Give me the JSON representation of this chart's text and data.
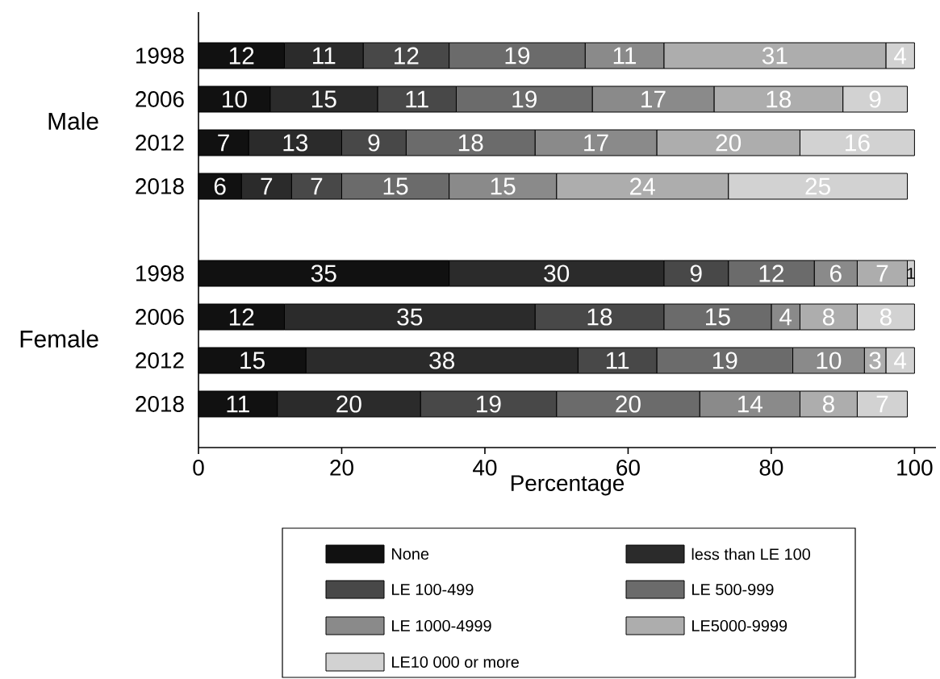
{
  "chart_data": {
    "type": "bar",
    "orientation": "horizontal",
    "stacked": true,
    "data_labels": true,
    "legend": "bottom",
    "xlabel": "Percentage",
    "categories": [
      "1998",
      "2006",
      "2012",
      "2018",
      null,
      "1998",
      "2006",
      "2012",
      "2018"
    ],
    "annotations": [
      "Male",
      "Female"
    ],
    "xlim": [
      0,
      103
    ],
    "xticks": [
      0,
      20,
      40,
      60,
      80,
      100
    ],
    "series": [
      {
        "name": "None",
        "color": "#111111",
        "values": [
          12,
          10,
          7,
          6,
          null,
          35,
          12,
          15,
          11
        ]
      },
      {
        "name": "less than LE 100",
        "color": "#2b2b2b",
        "values": [
          11,
          15,
          13,
          7,
          null,
          30,
          35,
          38,
          20
        ]
      },
      {
        "name": "LE 100-499",
        "color": "#484848",
        "values": [
          12,
          11,
          9,
          7,
          null,
          9,
          18,
          11,
          19
        ]
      },
      {
        "name": "LE 500-999",
        "color": "#6b6b6b",
        "values": [
          19,
          19,
          18,
          15,
          null,
          12,
          15,
          19,
          20
        ]
      },
      {
        "name": "LE 1000-4999",
        "color": "#8a8a8a",
        "values": [
          11,
          17,
          17,
          15,
          null,
          6,
          4,
          10,
          14
        ]
      },
      {
        "name": "LE5000-9999",
        "color": "#adadad",
        "values": [
          31,
          18,
          20,
          24,
          null,
          7,
          8,
          3,
          8
        ]
      },
      {
        "name": "LE10 000 or more",
        "color": "#d2d2d2",
        "values": [
          4,
          9,
          16,
          25,
          null,
          1,
          8,
          4,
          7
        ]
      }
    ]
  }
}
